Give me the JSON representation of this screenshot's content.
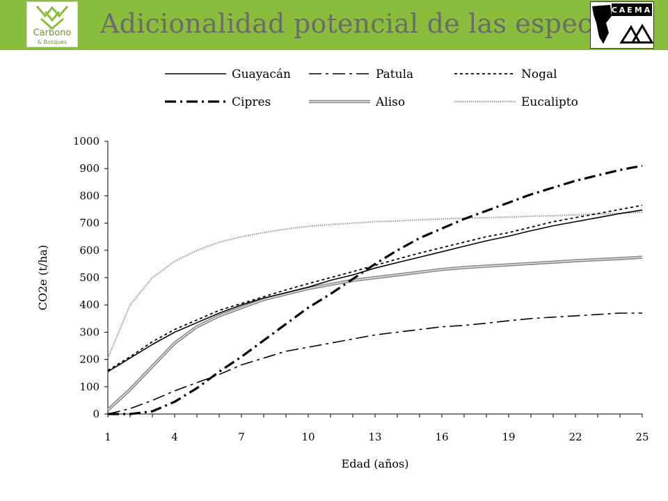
{
  "header": {
    "title": "Adicionalidad potencial de las especies",
    "logo_left_line1": "Carbono",
    "logo_left_line2": "& Bosques",
    "logo_right_text": "CAEMA CEE",
    "bar_color": "#8bbd3c"
  },
  "chart_data": {
    "type": "line",
    "title": "",
    "xlabel": "Edad (años)",
    "ylabel": "CO2e (t/ha)",
    "xlim": [
      1,
      25
    ],
    "ylim": [
      0,
      1000
    ],
    "xticks": [
      1,
      4,
      7,
      10,
      13,
      16,
      19,
      22,
      25
    ],
    "yticks": [
      0,
      100,
      200,
      300,
      400,
      500,
      600,
      700,
      800,
      900,
      1000
    ],
    "grid": false,
    "legend_position": "top",
    "x": [
      1,
      2,
      3,
      4,
      5,
      6,
      7,
      8,
      9,
      10,
      11,
      12,
      13,
      14,
      15,
      16,
      17,
      18,
      19,
      20,
      21,
      22,
      23,
      24,
      25
    ],
    "series": [
      {
        "name": "Guayacán",
        "style": "solid",
        "color": "#000000",
        "values": [
          155,
          205,
          255,
          300,
          335,
          370,
          400,
          425,
          445,
          465,
          490,
          510,
          535,
          555,
          575,
          595,
          615,
          635,
          652,
          672,
          690,
          705,
          720,
          735,
          748
        ]
      },
      {
        "name": "Patula",
        "style": "dashdot-long",
        "color": "#000000",
        "values": [
          0,
          20,
          50,
          85,
          115,
          145,
          180,
          205,
          230,
          245,
          260,
          275,
          290,
          300,
          310,
          320,
          325,
          333,
          342,
          350,
          355,
          360,
          365,
          370,
          370
        ]
      },
      {
        "name": "Nogal",
        "style": "dotted",
        "color": "#000000",
        "values": [
          160,
          210,
          265,
          310,
          345,
          380,
          405,
          430,
          455,
          478,
          500,
          522,
          545,
          568,
          590,
          610,
          630,
          650,
          665,
          685,
          705,
          720,
          735,
          750,
          765
        ]
      },
      {
        "name": "Cipres",
        "style": "dashdot-heavy",
        "color": "#000000",
        "values": [
          0,
          0,
          10,
          45,
          95,
          155,
          210,
          270,
          330,
          390,
          440,
          495,
          550,
          600,
          645,
          680,
          715,
          745,
          775,
          805,
          830,
          855,
          875,
          895,
          910
        ]
      },
      {
        "name": "Aliso",
        "style": "double-gray",
        "color": "#888888",
        "values": [
          15,
          90,
          175,
          260,
          320,
          360,
          390,
          420,
          440,
          460,
          475,
          490,
          500,
          510,
          520,
          530,
          537,
          542,
          547,
          552,
          557,
          562,
          566,
          570,
          575
        ]
      },
      {
        "name": "Eucalipto",
        "style": "light-dotted",
        "color": "#aaaaaa",
        "values": [
          205,
          400,
          500,
          560,
          600,
          630,
          650,
          665,
          678,
          688,
          695,
          700,
          705,
          708,
          712,
          715,
          718,
          720,
          722,
          725,
          727,
          730,
          733,
          736,
          740
        ]
      }
    ]
  }
}
